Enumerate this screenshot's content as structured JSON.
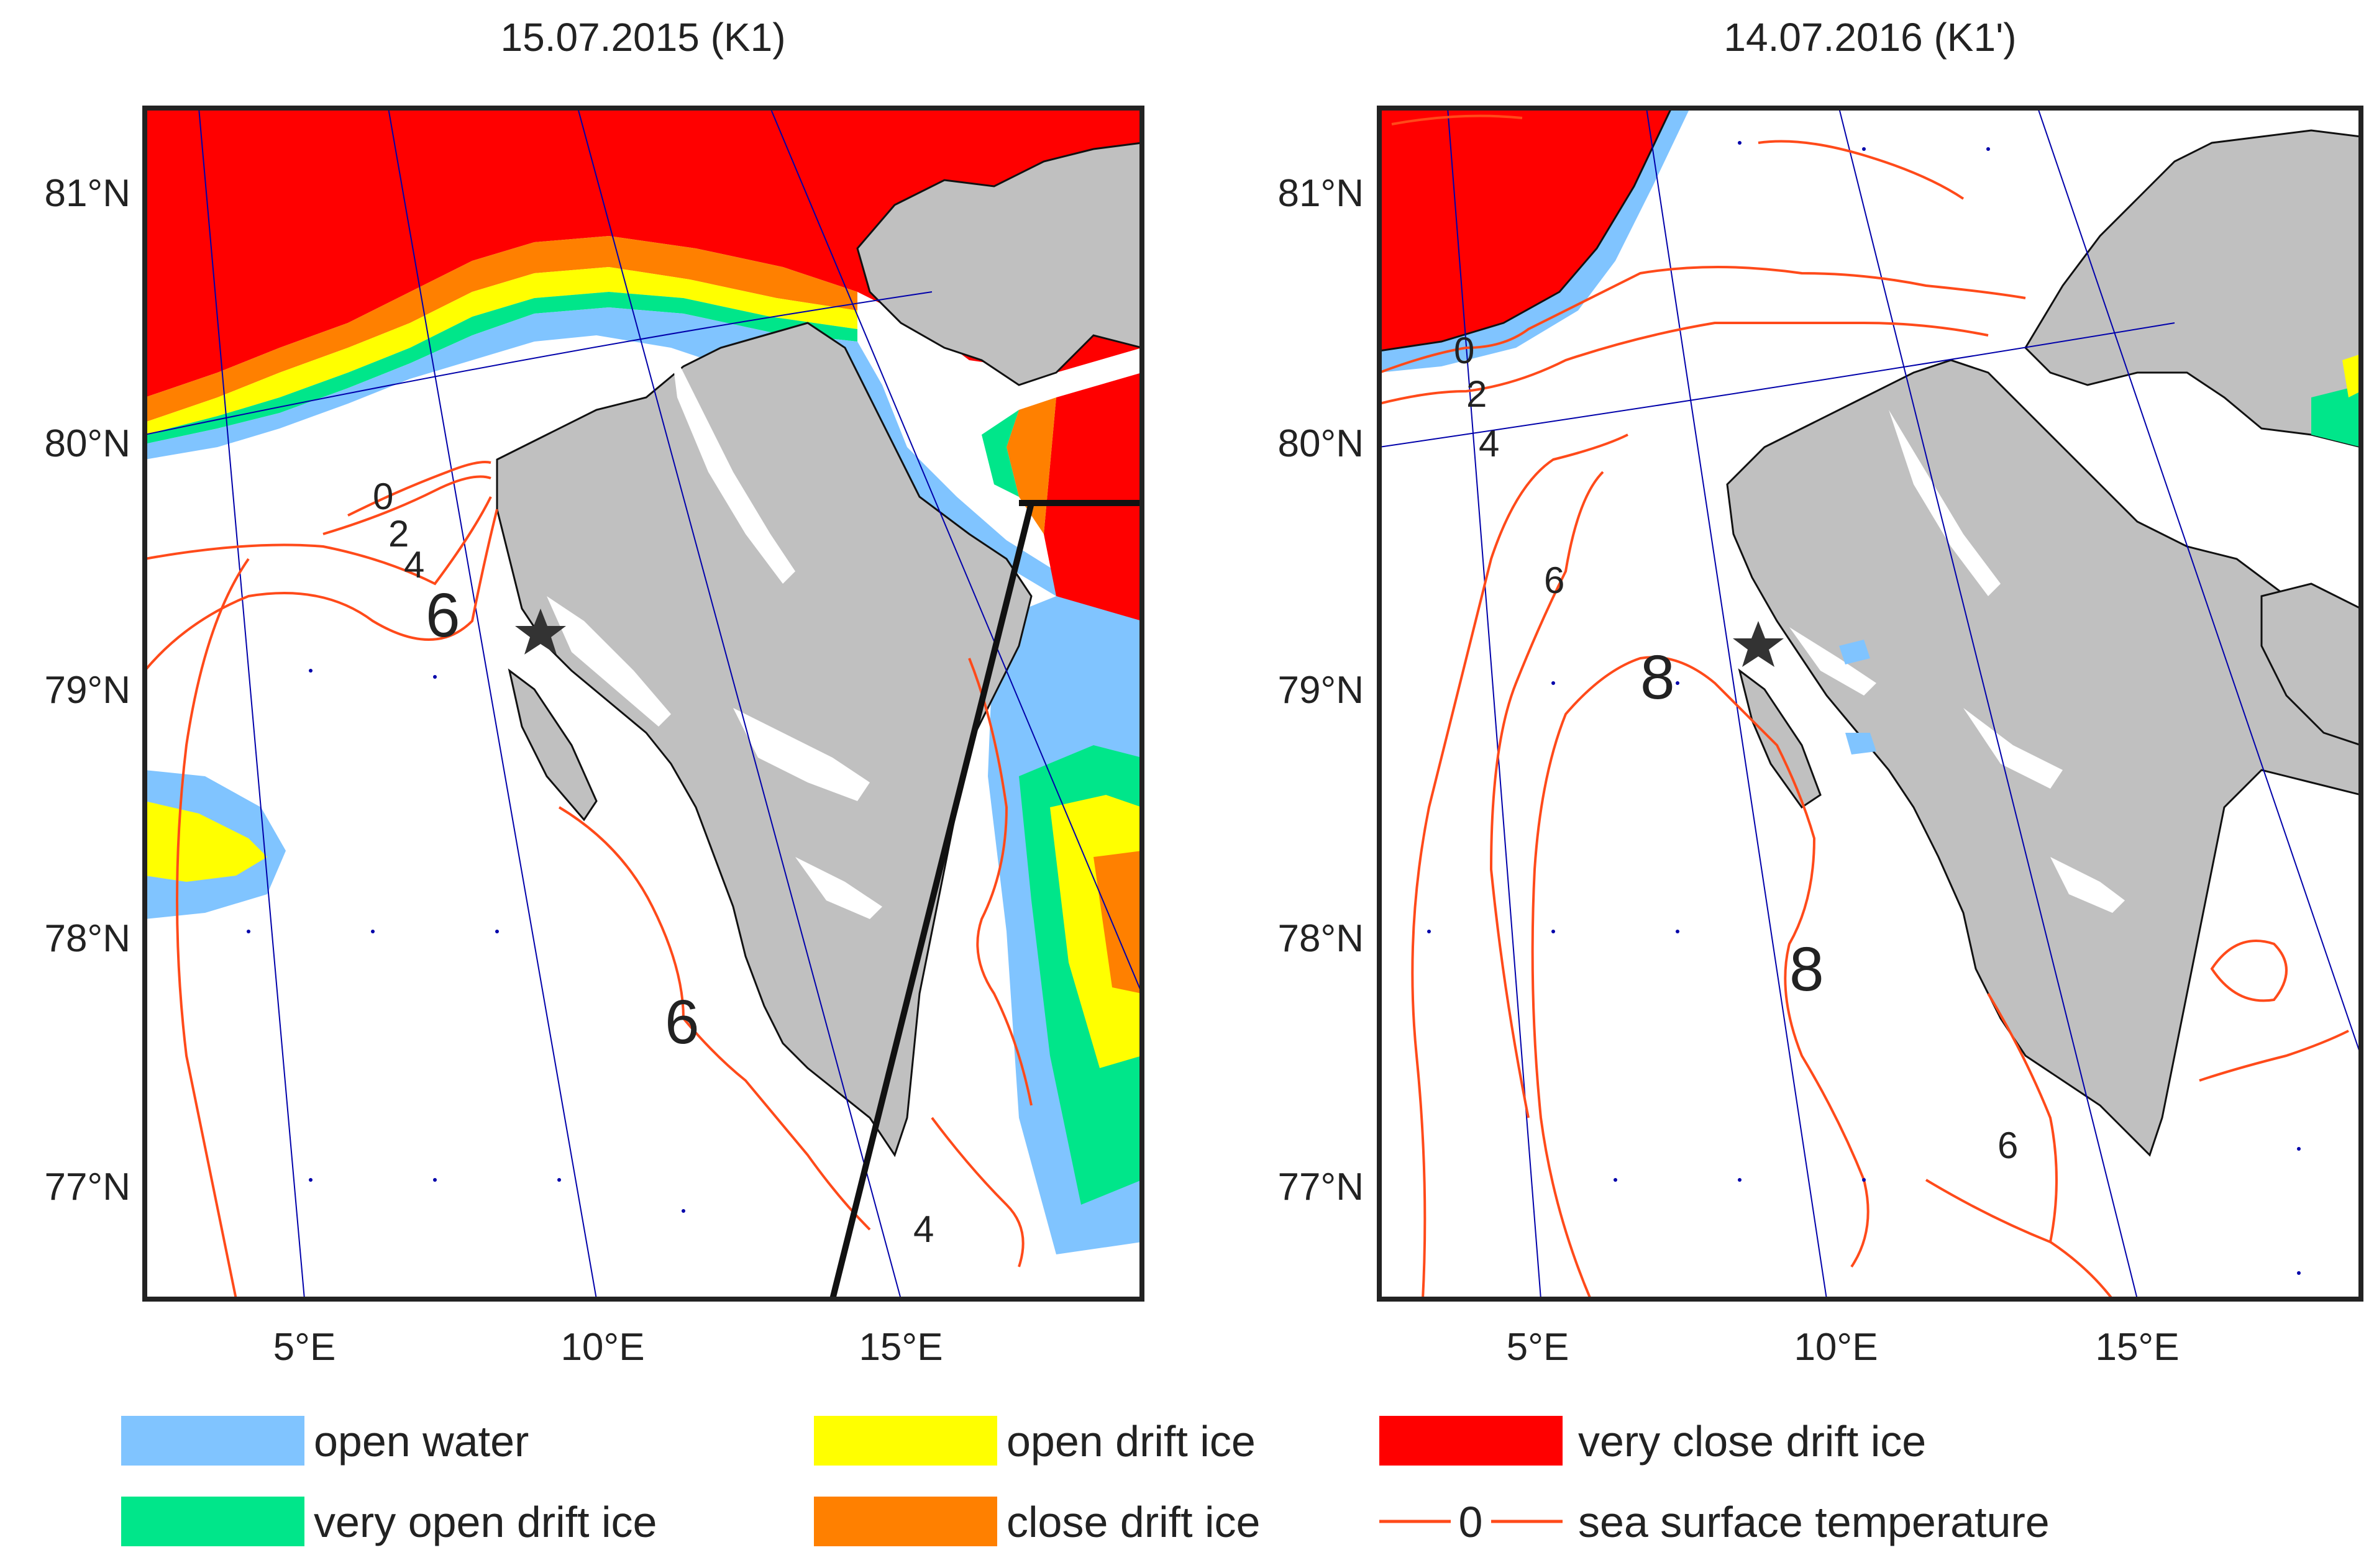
{
  "panels": [
    {
      "title": "15.07.2015 (K1)",
      "lat_labels": [
        "81°N",
        "80°N",
        "79°N",
        "78°N",
        "77°N"
      ],
      "lon_labels": [
        "5°E",
        "10°E",
        "15°E"
      ],
      "contour_labels": [
        "0",
        "2",
        "4",
        "6",
        "6",
        "4"
      ]
    },
    {
      "title": "14.07.2016 (K1')",
      "lat_labels": [
        "81°N",
        "80°N",
        "79°N",
        "78°N",
        "77°N"
      ],
      "lon_labels": [
        "5°E",
        "10°E",
        "15°E"
      ],
      "contour_labels": [
        "0",
        "2",
        "4",
        "6",
        "8",
        "8",
        "6"
      ]
    }
  ],
  "legend": {
    "items": [
      {
        "label": "open water",
        "color": "#80c4ff"
      },
      {
        "label": "very open drift ice",
        "color": "#00e68a"
      },
      {
        "label": "open drift ice",
        "color": "#ffff00"
      },
      {
        "label": "close drift ice",
        "color": "#ff8000"
      },
      {
        "label": "very close drift ice",
        "color": "#ff0000"
      }
    ],
    "line_item": {
      "label": "sea surface temperature",
      "value": "0",
      "color": "#ff4a1a"
    }
  },
  "colors": {
    "land": "#c0c0c0",
    "grid": "#0000aa",
    "contour": "#ff4a1a",
    "frame": "#222222",
    "marker": "#333333"
  }
}
